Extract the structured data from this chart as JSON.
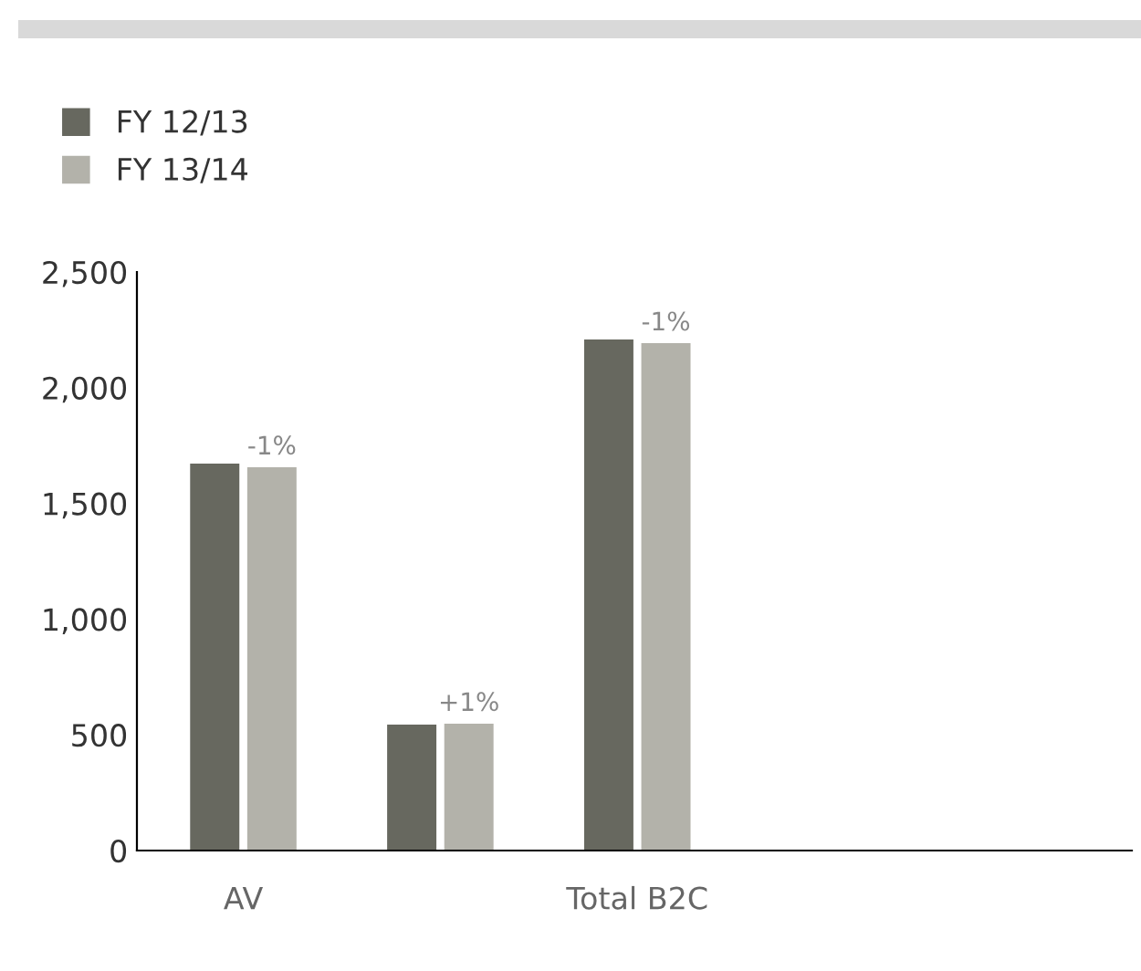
{
  "chart_data": {
    "type": "bar",
    "categories": [
      "AV",
      null,
      "Total B2C"
    ],
    "series": [
      {
        "name": "FY 12/13",
        "color": "#67685f",
        "values": [
          1672,
          544,
          2208
        ]
      },
      {
        "name": "FY 13/14",
        "color": "#b3b2aa",
        "values": [
          1656,
          548,
          2192
        ]
      }
    ],
    "annotations": [
      "-1%",
      "+1%",
      "-1%"
    ],
    "ylim": [
      0,
      2500
    ],
    "yticks": [
      0,
      500,
      {
        "value": 1000,
        "label": "1,000"
      },
      {
        "value": 1500,
        "label": "1,500"
      },
      {
        "value": 2000,
        "label": "2,000"
      },
      {
        "value": 2500,
        "label": "2,500"
      }
    ],
    "grid": false,
    "legend": "top left"
  }
}
